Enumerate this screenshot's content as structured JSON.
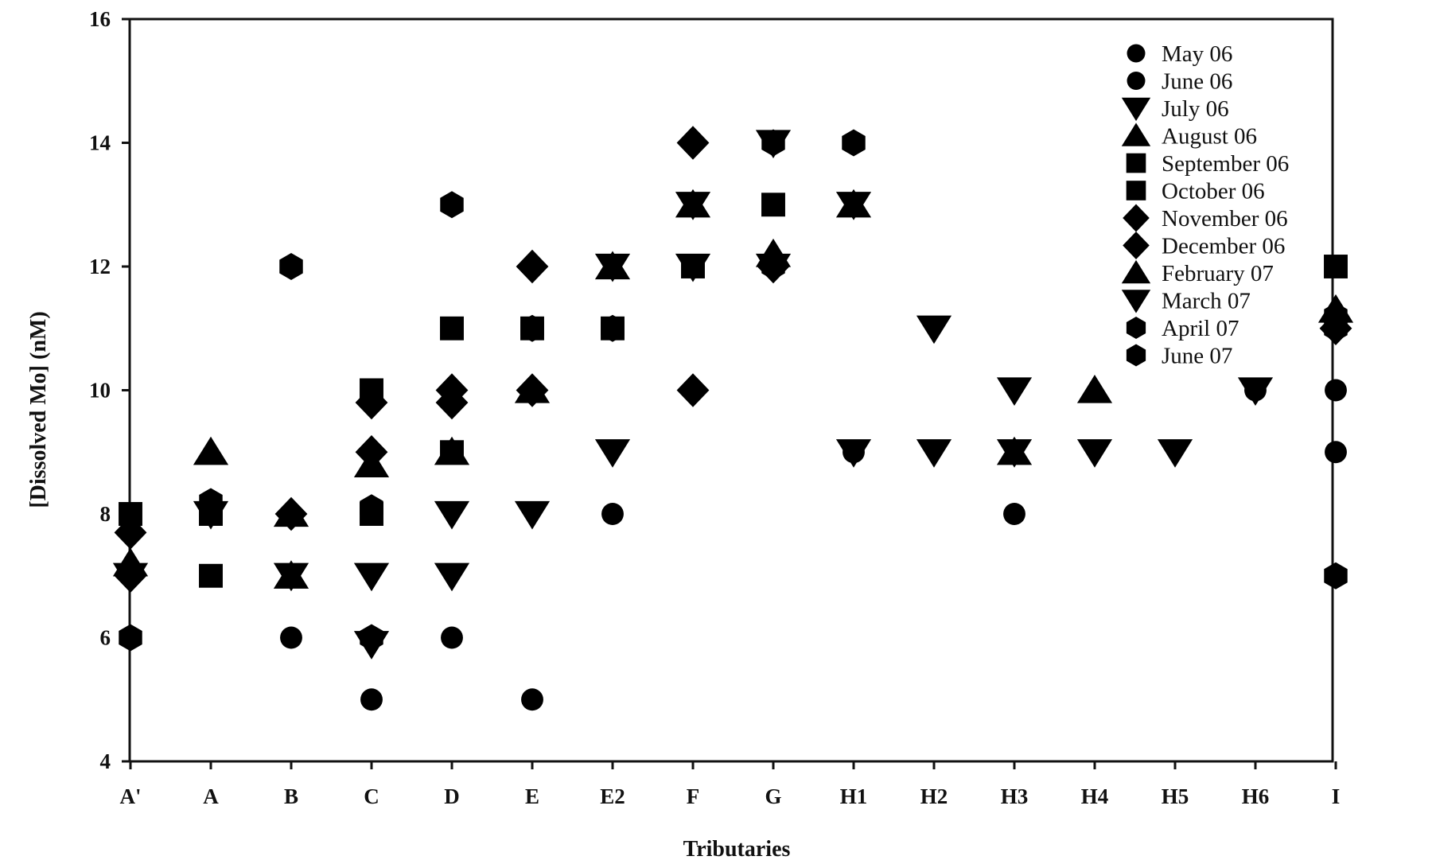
{
  "chart_data": {
    "type": "scatter",
    "title": "",
    "xlabel": "Tributaries",
    "ylabel": "[Dissolved Mo] (nM)",
    "categories": [
      "A'",
      "A",
      "B",
      "C",
      "D",
      "E",
      "E2",
      "F",
      "G",
      "H1",
      "H2",
      "H3",
      "H4",
      "H5",
      "H6",
      "I"
    ],
    "ylim": [
      4,
      16
    ],
    "yticks": [
      4,
      6,
      8,
      10,
      12,
      14,
      16
    ],
    "grid": false,
    "legend_position": "top-right",
    "series": [
      {
        "name": "May 06",
        "marker": "circle",
        "points": [
          [
            "B",
            6
          ],
          [
            "C",
            5
          ],
          [
            "C",
            6
          ],
          [
            "D",
            6
          ],
          [
            "E",
            5
          ],
          [
            "E2",
            8
          ],
          [
            "H1",
            9
          ],
          [
            "H3",
            8
          ],
          [
            "H6",
            10
          ],
          [
            "I",
            10
          ],
          [
            "I",
            9
          ]
        ]
      },
      {
        "name": "June 06",
        "marker": "circle",
        "points": [
          [
            "D",
            11
          ],
          [
            "E",
            11
          ]
        ]
      },
      {
        "name": "July 06",
        "marker": "triangle-down",
        "points": [
          [
            "A",
            8
          ],
          [
            "B",
            7
          ],
          [
            "C",
            7
          ],
          [
            "C",
            5.9
          ],
          [
            "D",
            8
          ],
          [
            "D",
            7
          ],
          [
            "E",
            8
          ],
          [
            "E2",
            9
          ],
          [
            "F",
            12
          ],
          [
            "G",
            14
          ],
          [
            "G",
            12
          ],
          [
            "H1",
            9
          ],
          [
            "H1",
            13
          ],
          [
            "H2",
            11
          ],
          [
            "H2",
            9
          ],
          [
            "H3",
            10
          ],
          [
            "H3",
            9
          ],
          [
            "H4",
            9
          ],
          [
            "H5",
            9
          ],
          [
            "H6",
            10
          ]
        ]
      },
      {
        "name": "August 06",
        "marker": "triangle-up",
        "points": [
          [
            "A'",
            7.2
          ],
          [
            "A",
            9
          ],
          [
            "B",
            8
          ],
          [
            "C",
            8.8
          ],
          [
            "D",
            9
          ],
          [
            "E2",
            12
          ],
          [
            "F",
            13
          ],
          [
            "G",
            12.2
          ],
          [
            "H1",
            13
          ],
          [
            "H3",
            9
          ],
          [
            "H4",
            10
          ],
          [
            "I",
            11.3
          ]
        ]
      },
      {
        "name": "September 06",
        "marker": "square",
        "points": [
          [
            "A'",
            8
          ],
          [
            "A",
            7
          ],
          [
            "A",
            8
          ],
          [
            "C",
            10
          ],
          [
            "C",
            8
          ],
          [
            "D",
            9
          ],
          [
            "E",
            11
          ],
          [
            "E2",
            11
          ],
          [
            "F",
            12
          ],
          [
            "G",
            13
          ],
          [
            "I",
            12
          ]
        ]
      },
      {
        "name": "October 06",
        "marker": "square",
        "points": [
          [
            "D",
            11
          ]
        ]
      },
      {
        "name": "November 06",
        "marker": "diamond",
        "points": [
          [
            "A'",
            7.7
          ],
          [
            "C",
            9.8
          ],
          [
            "C",
            9
          ],
          [
            "D",
            10
          ],
          [
            "E",
            12
          ],
          [
            "F",
            14
          ],
          [
            "F",
            10
          ],
          [
            "G",
            12
          ],
          [
            "I",
            11
          ]
        ]
      },
      {
        "name": "December 06",
        "marker": "diamond",
        "points": [
          [
            "A'",
            7
          ],
          [
            "B",
            8
          ],
          [
            "D",
            9.8
          ],
          [
            "E",
            10
          ]
        ]
      },
      {
        "name": "February 07",
        "marker": "triangle-up",
        "points": [
          [
            "B",
            7
          ],
          [
            "E",
            10
          ]
        ]
      },
      {
        "name": "March 07",
        "marker": "triangle-down",
        "points": [
          [
            "A'",
            7
          ],
          [
            "E2",
            12
          ],
          [
            "F",
            13
          ]
        ]
      },
      {
        "name": "April 07",
        "marker": "hexagon",
        "points": [
          [
            "A'",
            6
          ],
          [
            "A",
            8.2
          ],
          [
            "B",
            12
          ],
          [
            "C",
            8.1
          ],
          [
            "D",
            13
          ],
          [
            "E",
            11
          ],
          [
            "E2",
            11
          ],
          [
            "H1",
            14
          ],
          [
            "I",
            7
          ],
          [
            "I",
            11.2
          ]
        ]
      },
      {
        "name": "June 07",
        "marker": "hexagon",
        "points": [
          [
            "C",
            6
          ],
          [
            "G",
            12
          ],
          [
            "G",
            14
          ],
          [
            "I",
            11
          ]
        ]
      }
    ]
  }
}
